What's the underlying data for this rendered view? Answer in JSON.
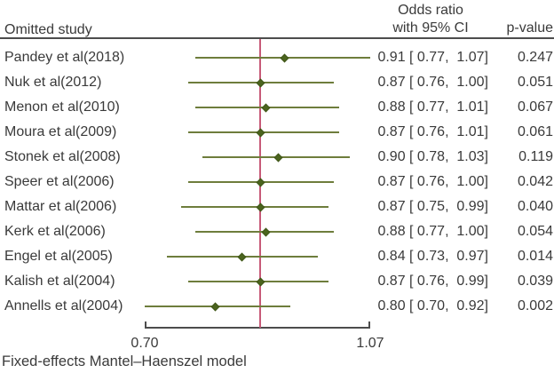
{
  "header": {
    "left_label": "Omitted study",
    "or_header_line1": "Odds ratio",
    "or_header_line2": "with 95% CI",
    "p_header": "p-value"
  },
  "footer": {
    "model_label": "Fixed-effects Mantel–Haenszel model"
  },
  "colors": {
    "ci_line": "#6e7d3c",
    "marker_fill": "#4b641e",
    "marker_edge": "#3e5517",
    "reference_line": "#c75a78",
    "axis": "#4d4d4d",
    "text": "#3a3a3a"
  },
  "chart_data": {
    "type": "forest",
    "subtype": "leave-one-out sensitivity analysis",
    "x_scale": "log",
    "x_min": 0.7,
    "x_max": 1.07,
    "x_tick_labels": [
      "0.70",
      "1.07"
    ],
    "reference_line_at": 0.87,
    "grid": false,
    "studies": [
      {
        "label": "Pandey et al(2018)",
        "or": 0.91,
        "ci_low": 0.77,
        "ci_high": 1.07,
        "p_value": 0.247
      },
      {
        "label": "Nuk et al(2012)",
        "or": 0.87,
        "ci_low": 0.76,
        "ci_high": 1.0,
        "p_value": 0.051
      },
      {
        "label": "Menon et al(2010)",
        "or": 0.88,
        "ci_low": 0.77,
        "ci_high": 1.01,
        "p_value": 0.067
      },
      {
        "label": "Moura et al(2009)",
        "or": 0.87,
        "ci_low": 0.76,
        "ci_high": 1.01,
        "p_value": 0.061
      },
      {
        "label": "Stonek et al(2008)",
        "or": 0.9,
        "ci_low": 0.78,
        "ci_high": 1.03,
        "p_value": 0.119
      },
      {
        "label": "Speer et al(2006)",
        "or": 0.87,
        "ci_low": 0.76,
        "ci_high": 1.0,
        "p_value": 0.042
      },
      {
        "label": "Mattar et al(2006)",
        "or": 0.87,
        "ci_low": 0.75,
        "ci_high": 0.99,
        "p_value": 0.04
      },
      {
        "label": "Kerk et al(2006)",
        "or": 0.88,
        "ci_low": 0.77,
        "ci_high": 1.0,
        "p_value": 0.054
      },
      {
        "label": "Engel et al(2005)",
        "or": 0.84,
        "ci_low": 0.73,
        "ci_high": 0.97,
        "p_value": 0.014
      },
      {
        "label": "Kalish et al(2004)",
        "or": 0.87,
        "ci_low": 0.76,
        "ci_high": 0.99,
        "p_value": 0.039
      },
      {
        "label": "Annells et al(2004)",
        "or": 0.8,
        "ci_low": 0.7,
        "ci_high": 0.92,
        "p_value": 0.002
      }
    ]
  }
}
